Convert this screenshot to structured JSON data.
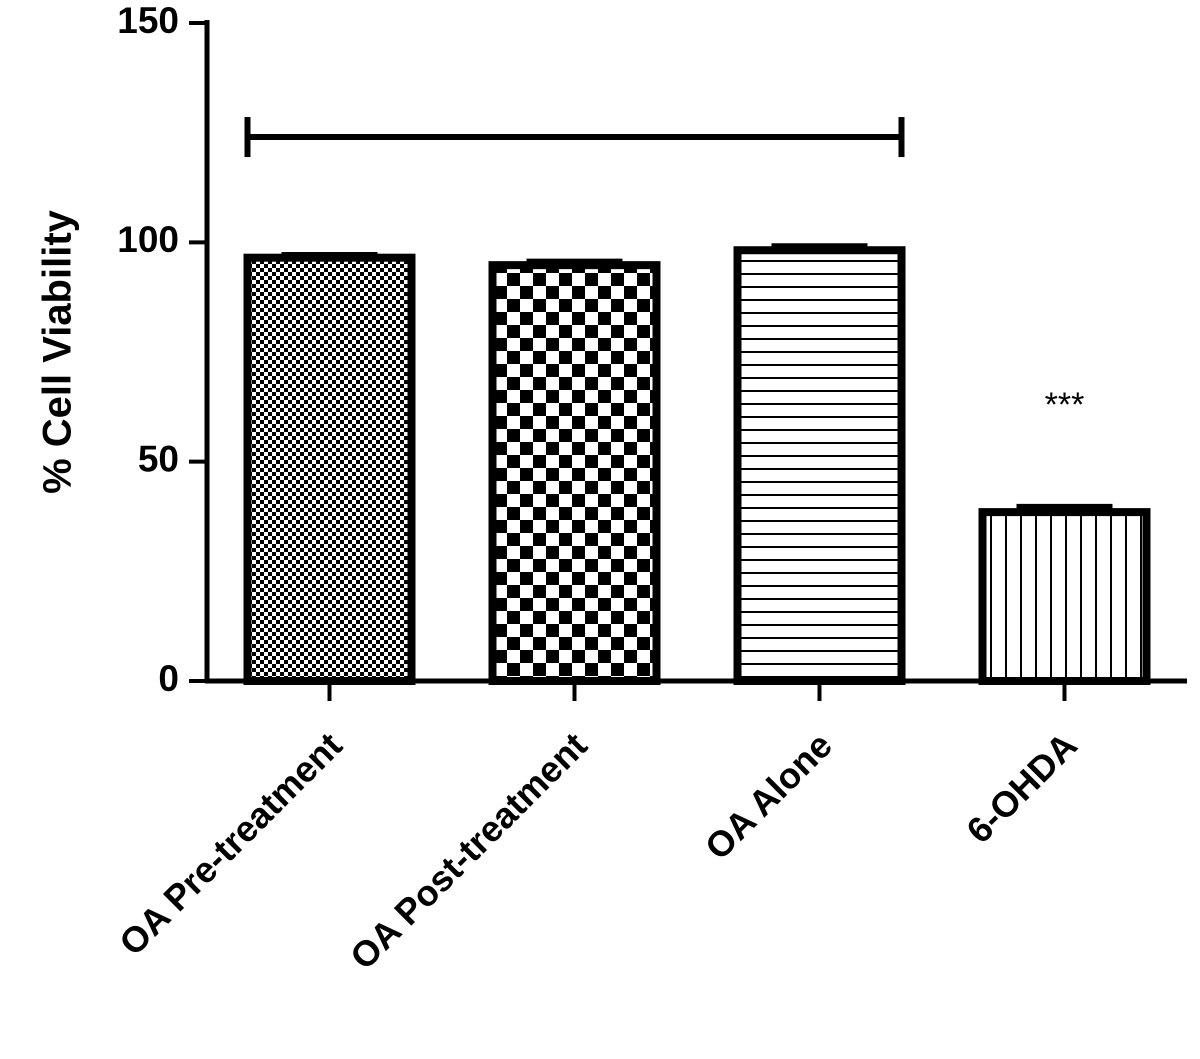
{
  "chart_data": {
    "type": "bar",
    "categories": [
      "OA Pre-treatment",
      "OA Post-treatment",
      "OA Alone",
      "6-OHDA"
    ],
    "values": [
      96.5,
      94.8,
      98.2,
      38.5
    ],
    "errors": [
      0.6,
      0.8,
      0.9,
      1.2
    ],
    "patterns": [
      "dots",
      "checker",
      "hlines",
      "vlines"
    ],
    "ylabel": "% Cell Viability",
    "xlabel": "",
    "ylim": [
      0,
      150
    ],
    "yticks": [
      0,
      50,
      100,
      150
    ],
    "grid": false,
    "annotations": [
      {
        "category": "6-OHDA",
        "text": "***"
      }
    ],
    "bracket": {
      "from": "OA Pre-treatment",
      "to": "OA Alone",
      "value": 124
    },
    "colors": {
      "bar_fill": "#ffffff",
      "pattern": "#000000"
    }
  }
}
